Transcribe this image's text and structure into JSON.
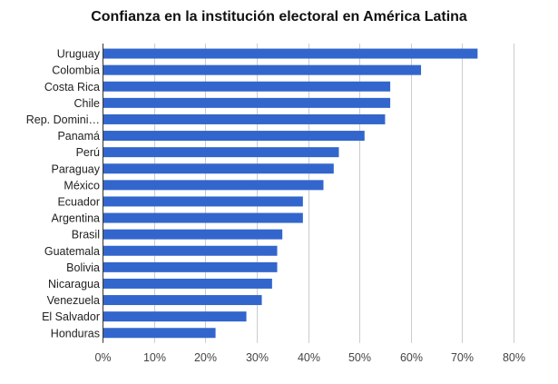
{
  "chart_data": {
    "type": "bar",
    "orientation": "horizontal",
    "title": "Confianza en la institución electoral en América Latina",
    "xlabel": "",
    "ylabel": "",
    "bar_color": "#3366cc",
    "grid_color": "#cccccc",
    "grid": true,
    "legend": "none",
    "xlim": [
      0,
      80
    ],
    "x_ticks": [
      0,
      10,
      20,
      30,
      40,
      50,
      60,
      70,
      80
    ],
    "x_tick_labels": [
      "0%",
      "10%",
      "20%",
      "30%",
      "40%",
      "50%",
      "60%",
      "70%",
      "80%"
    ],
    "categories": [
      "Uruguay",
      "Colombia",
      "Costa Rica",
      "Chile",
      "Rep. Domini…",
      "Panamá",
      "Perú",
      "Paraguay",
      "México",
      "Ecuador",
      "Argentina",
      "Brasil",
      "Guatemala",
      "Bolivia",
      "Nicaragua",
      "Venezuela",
      "El Salvador",
      "Honduras"
    ],
    "values": [
      73,
      62,
      56,
      56,
      55,
      51,
      46,
      45,
      43,
      39,
      39,
      35,
      34,
      34,
      33,
      31,
      28,
      22
    ]
  }
}
